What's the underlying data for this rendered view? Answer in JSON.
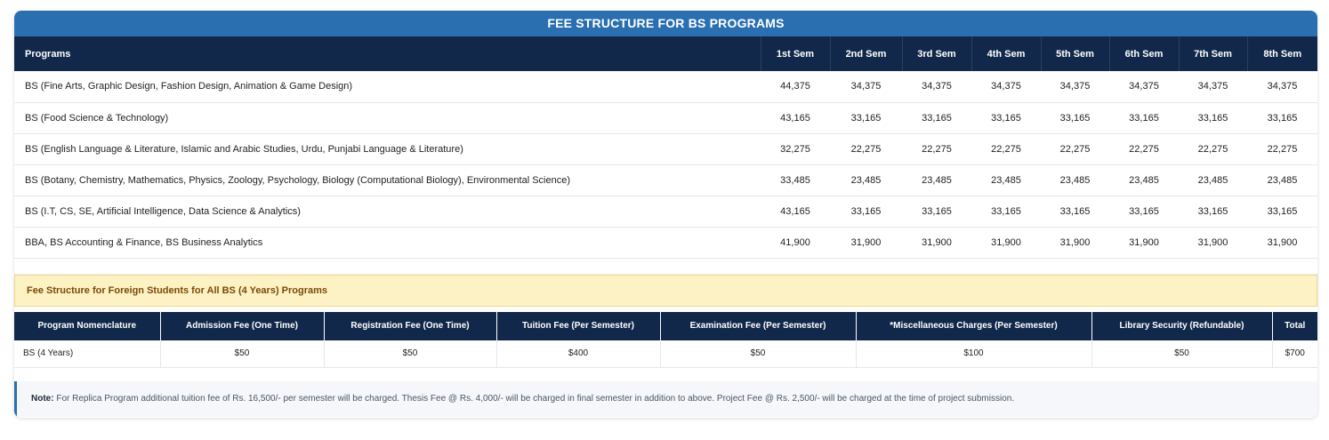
{
  "title": "FEE STRUCTURE FOR BS PROGRAMS",
  "main_table": {
    "headers": [
      "Programs",
      "1st Sem",
      "2nd Sem",
      "3rd Sem",
      "4th Sem",
      "5th Sem",
      "6th Sem",
      "7th Sem",
      "8th Sem"
    ],
    "rows": [
      [
        "BS (Fine Arts, Graphic Design, Fashion Design, Animation & Game Design)",
        "44,375",
        "34,375",
        "34,375",
        "34,375",
        "34,375",
        "34,375",
        "34,375",
        "34,375"
      ],
      [
        "BS (Food Science & Technology)",
        "43,165",
        "33,165",
        "33,165",
        "33,165",
        "33,165",
        "33,165",
        "33,165",
        "33,165"
      ],
      [
        "BS (English Language & Literature, Islamic and Arabic Studies, Urdu, Punjabi Language & Literature)",
        "32,275",
        "22,275",
        "22,275",
        "22,275",
        "22,275",
        "22,275",
        "22,275",
        "22,275"
      ],
      [
        "BS (Botany, Chemistry, Mathematics, Physics, Zoology, Psychology, Biology (Computational Biology), Environmental Science)",
        "33,485",
        "23,485",
        "23,485",
        "23,485",
        "23,485",
        "23,485",
        "23,485",
        "23,485"
      ],
      [
        "BS (I.T, CS, SE, Artificial Intelligence, Data Science & Analytics)",
        "43,165",
        "33,165",
        "33,165",
        "33,165",
        "33,165",
        "33,165",
        "33,165",
        "33,165"
      ],
      [
        "BBA, BS Accounting & Finance, BS Business Analytics",
        "41,900",
        "31,900",
        "31,900",
        "31,900",
        "31,900",
        "31,900",
        "31,900",
        "31,900"
      ]
    ]
  },
  "foreign": {
    "banner": "Fee Structure for Foreign Students for All BS (4 Years) Programs",
    "headers": [
      "Program Nomenclature",
      "Admission Fee (One Time)",
      "Registration Fee (One Time)",
      "Tuition Fee (Per Semester)",
      "Examination Fee (Per Semester)",
      "*Miscellaneous Charges (Per Semester)",
      "Library Security (Refundable)",
      "Total"
    ],
    "rows": [
      [
        "BS (4 Years)",
        "$50",
        "$50",
        "$400",
        "$50",
        "$100",
        "$50",
        "$700"
      ]
    ]
  },
  "note": {
    "label": "Note:",
    "text": " For Replica Program additional tuition fee of Rs. 16,500/- per semester will be charged. Thesis Fee @ Rs. 4,000/- will be charged in final semester in addition to above. Project Fee @ Rs. 2,500/- will be charged at the time of project submission."
  },
  "colors": {
    "title_bar": "#2a6fb0",
    "header_navy": "#12284a",
    "banner_bg": "#fdf2c4",
    "banner_text": "#7a4a06"
  }
}
